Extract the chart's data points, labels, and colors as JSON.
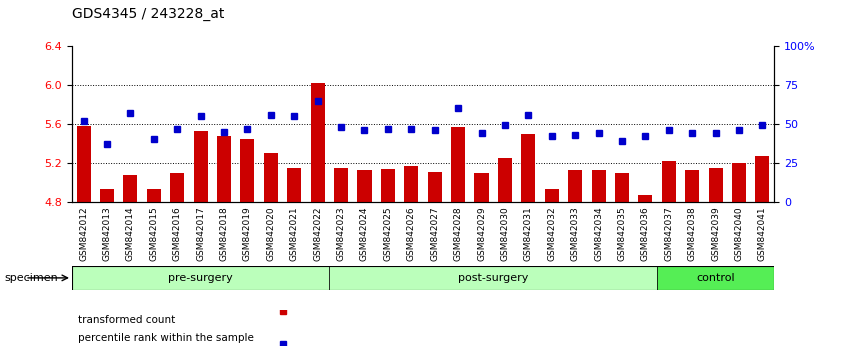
{
  "title": "GDS4345 / 243228_at",
  "categories": [
    "GSM842012",
    "GSM842013",
    "GSM842014",
    "GSM842015",
    "GSM842016",
    "GSM842017",
    "GSM842018",
    "GSM842019",
    "GSM842020",
    "GSM842021",
    "GSM842022",
    "GSM842023",
    "GSM842024",
    "GSM842025",
    "GSM842026",
    "GSM842027",
    "GSM842028",
    "GSM842029",
    "GSM842030",
    "GSM842031",
    "GSM842032",
    "GSM842033",
    "GSM842034",
    "GSM842035",
    "GSM842036",
    "GSM842037",
    "GSM842038",
    "GSM842039",
    "GSM842040",
    "GSM842041"
  ],
  "bar_values": [
    5.58,
    4.93,
    5.07,
    4.93,
    5.1,
    5.53,
    5.48,
    5.45,
    5.3,
    5.15,
    6.02,
    5.15,
    5.13,
    5.14,
    5.17,
    5.11,
    5.57,
    5.1,
    5.25,
    5.5,
    4.93,
    5.13,
    5.13,
    5.1,
    4.87,
    5.22,
    5.13,
    5.15,
    5.2,
    5.27
  ],
  "percentile_values": [
    52,
    37,
    57,
    40,
    47,
    55,
    45,
    47,
    56,
    55,
    65,
    48,
    46,
    47,
    47,
    46,
    60,
    44,
    49,
    56,
    42,
    43,
    44,
    39,
    42,
    46,
    44,
    44,
    46,
    49
  ],
  "groups": [
    {
      "label": "pre-surgery",
      "start": 0,
      "end": 11,
      "color": "#ccffcc"
    },
    {
      "label": "post-surgery",
      "start": 11,
      "end": 25,
      "color": "#aaffaa"
    },
    {
      "label": "control",
      "start": 25,
      "end": 30,
      "color": "#66dd66"
    }
  ],
  "bar_color": "#cc0000",
  "dot_color": "#0000cc",
  "ylim_left": [
    4.8,
    6.4
  ],
  "ylim_right": [
    0,
    100
  ],
  "yticks_left": [
    4.8,
    5.2,
    5.6,
    6.0,
    6.4
  ],
  "yticks_right": [
    0,
    25,
    50,
    75,
    100
  ],
  "ytick_labels_right": [
    "0",
    "25",
    "50",
    "75",
    "100%"
  ],
  "grid_values": [
    5.2,
    5.6,
    6.0
  ],
  "specimen_label": "specimen",
  "legend": [
    {
      "label": "transformed count",
      "color": "#cc0000"
    },
    {
      "label": "percentile rank within the sample",
      "color": "#0000cc"
    }
  ],
  "background_color": "#ffffff",
  "plot_bg_color": "#ffffff",
  "title_fontsize": 10
}
